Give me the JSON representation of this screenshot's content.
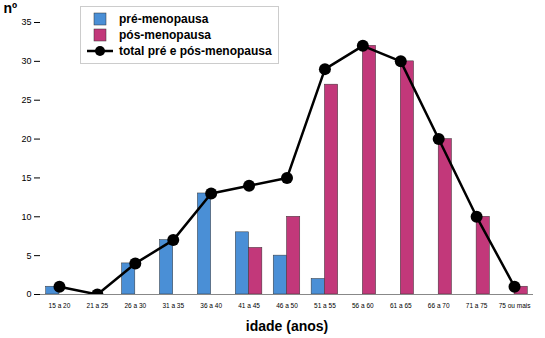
{
  "chart_data": {
    "type": "bar",
    "x_label": "idade (anos)",
    "y_label": "nº",
    "categories": [
      "15 a 20",
      "21 a 25",
      "26 a 30",
      "31 a 35",
      "36 a 40",
      "41 a 45",
      "46 a 50",
      "51 a 55",
      "56 a 60",
      "61 a 65",
      "66 a 70",
      "71 a 75",
      "75 ou mais"
    ],
    "series": [
      {
        "name": "pré-menopausa",
        "type": "bar",
        "color": "#4a8fd6",
        "values": [
          1,
          0,
          4,
          7,
          13,
          8,
          5,
          2,
          null,
          null,
          null,
          null,
          null
        ]
      },
      {
        "name": "pós-menopausa",
        "type": "bar",
        "color": "#c2387a",
        "values": [
          null,
          null,
          null,
          null,
          null,
          6,
          10,
          27,
          32,
          30,
          20,
          10,
          1
        ]
      },
      {
        "name": "total pré e pós-menopausa",
        "type": "line",
        "color": "#000000",
        "marker": "circle",
        "values": [
          1,
          0,
          4,
          7,
          13,
          14,
          15,
          29,
          32,
          30,
          20,
          10,
          1
        ]
      }
    ],
    "ylim": [
      0,
      35
    ],
    "yticks": [
      0,
      5,
      10,
      15,
      20,
      25,
      30,
      35
    ],
    "legend": "top-left",
    "grid": false
  }
}
